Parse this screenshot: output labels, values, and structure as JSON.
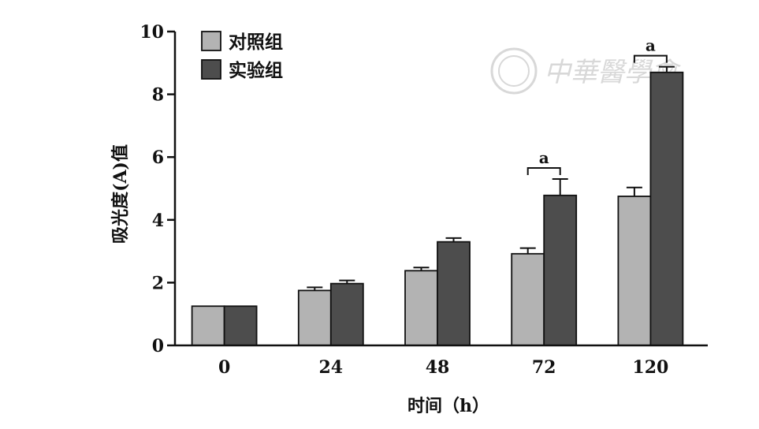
{
  "chart_data": {
    "type": "bar",
    "categories": [
      "0",
      "24",
      "48",
      "72",
      "120"
    ],
    "series": [
      {
        "name": "对照组",
        "values": [
          1.25,
          1.75,
          2.38,
          2.92,
          4.75
        ],
        "errors": [
          0,
          0.1,
          0.1,
          0.18,
          0.28
        ],
        "color": "#b3b3b3"
      },
      {
        "name": "实验组",
        "values": [
          1.25,
          1.97,
          3.3,
          4.78,
          8.7
        ],
        "errors": [
          0,
          0.1,
          0.12,
          0.52,
          0.18
        ],
        "color": "#4d4d4d"
      }
    ],
    "xlabel": "时间（h）",
    "ylabel": "吸光度(A)值",
    "ylim": [
      0,
      10
    ],
    "yticks": [
      "0",
      "2",
      "4",
      "6",
      "8",
      "10"
    ],
    "legend_position": "top-left",
    "significance": [
      {
        "category": "72",
        "label": "a"
      },
      {
        "category": "120",
        "label": "a"
      }
    ]
  },
  "watermark": {
    "text": "中華醫學會"
  }
}
